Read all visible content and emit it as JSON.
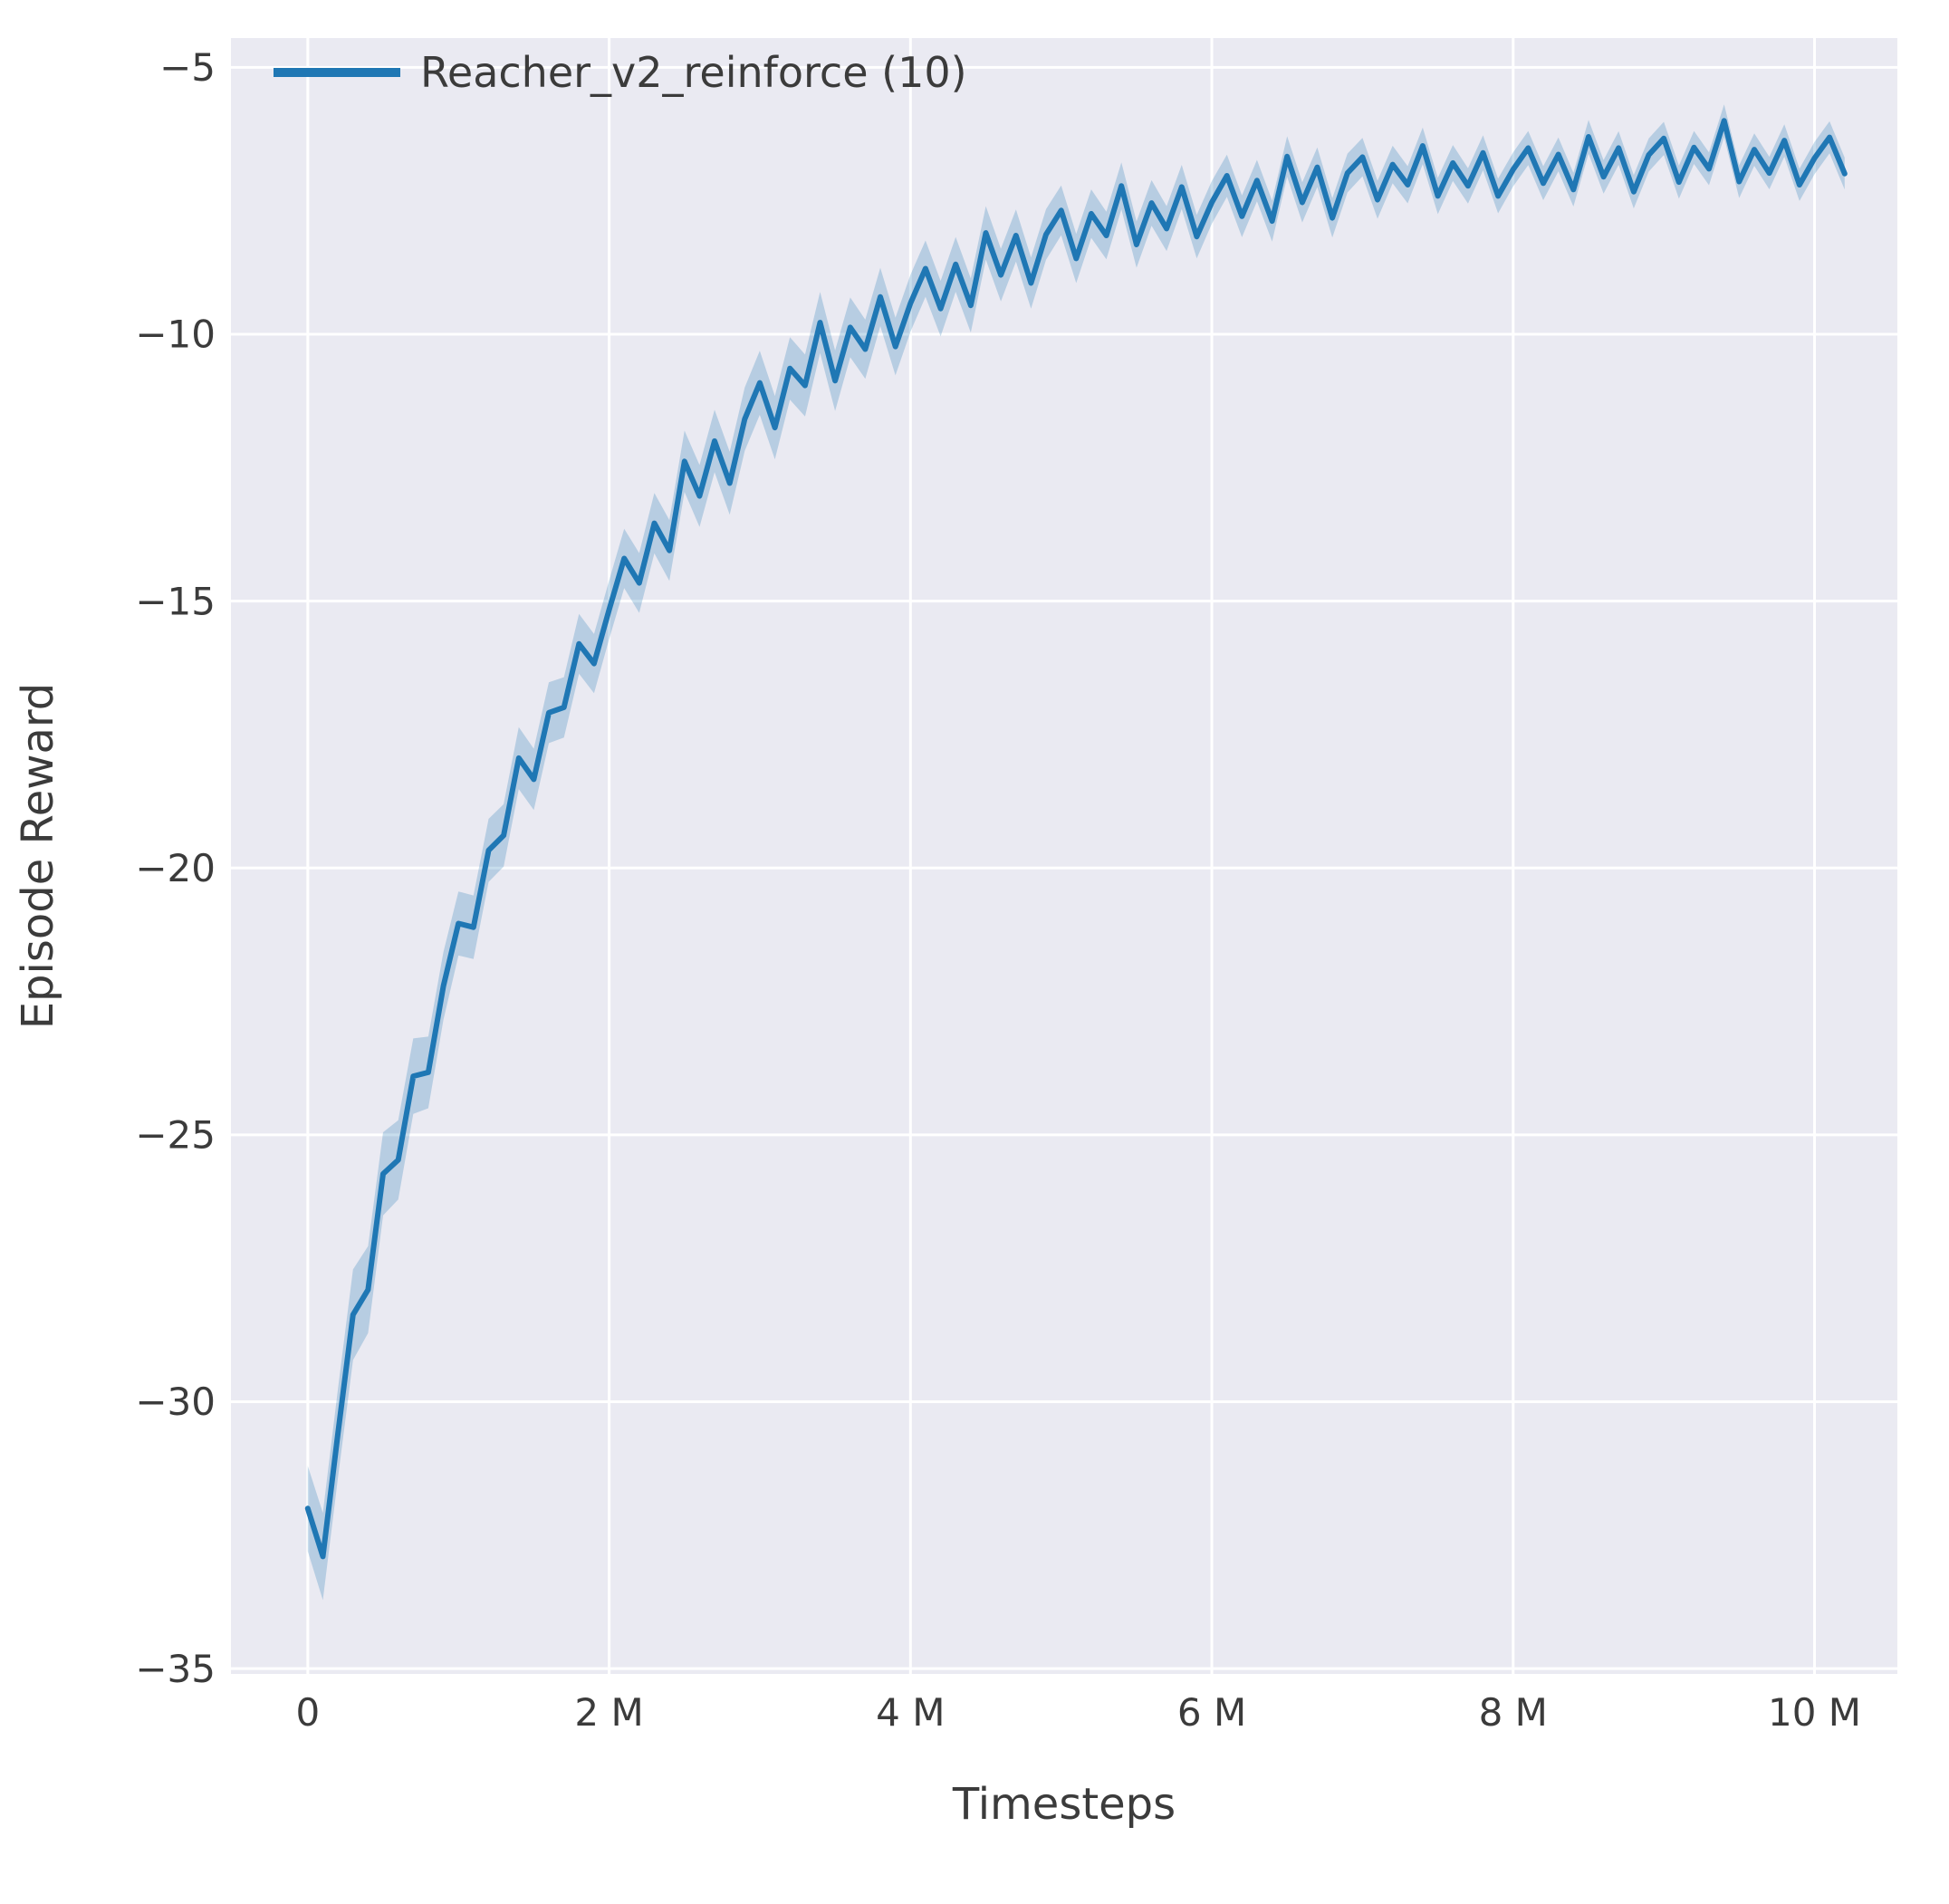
{
  "figure": {
    "background": "#ffffff",
    "axes_background": "#eaeaf2",
    "grid_color": "#ffffff",
    "text_color": "#3b3b3b"
  },
  "chart_data": {
    "type": "line",
    "title": "",
    "xlabel": "Timesteps",
    "ylabel": "Episode Reward",
    "grid": true,
    "legend_position": "upper left",
    "legend": [
      {
        "label": "Reacher_v2_reinforce (10)",
        "color": "#1f77b4"
      }
    ],
    "x_unit": "millions of timesteps",
    "xlim": [
      -0.51,
      10.55
    ],
    "ylim": [
      -35.1,
      -4.45
    ],
    "xticks": {
      "values": [
        0,
        2,
        4,
        6,
        8,
        10
      ],
      "labels": [
        "0",
        "2 M",
        "4 M",
        "6 M",
        "8 M",
        "10 M"
      ]
    },
    "yticks": {
      "values": [
        -5,
        -10,
        -15,
        -20,
        -25,
        -30,
        -35
      ],
      "labels": [
        "−5",
        "−10",
        "−15",
        "−20",
        "−25",
        "−30",
        "−35"
      ]
    },
    "series": [
      {
        "name": "Reacher_v2_reinforce (10)",
        "color": "#1f77b4",
        "line_width": 6,
        "x": [
          0.0,
          0.1,
          0.2,
          0.3,
          0.4,
          0.5,
          0.6,
          0.7,
          0.8,
          0.9,
          1.0,
          1.1,
          1.2,
          1.3,
          1.4,
          1.5,
          1.6,
          1.7,
          1.8,
          1.9,
          2.0,
          2.1,
          2.2,
          2.3,
          2.4,
          2.5,
          2.6,
          2.7,
          2.8,
          2.9,
          3.0,
          3.1,
          3.2,
          3.3,
          3.4,
          3.5,
          3.6,
          3.7,
          3.8,
          3.9,
          4.0,
          4.1,
          4.2,
          4.3,
          4.4,
          4.5,
          4.6,
          4.7,
          4.8,
          4.9,
          5.0,
          5.1,
          5.2,
          5.3,
          5.4,
          5.5,
          5.6,
          5.7,
          5.8,
          5.9,
          6.0,
          6.1,
          6.2,
          6.3,
          6.4,
          6.5,
          6.6,
          6.7,
          6.8,
          6.9,
          7.0,
          7.1,
          7.2,
          7.3,
          7.4,
          7.5,
          7.6,
          7.7,
          7.8,
          7.9,
          8.0,
          8.1,
          8.2,
          8.3,
          8.4,
          8.5,
          8.6,
          8.7,
          8.8,
          8.9,
          9.0,
          9.1,
          9.2,
          9.3,
          9.4,
          9.5,
          9.6,
          9.7,
          9.8,
          9.9,
          10.0,
          10.1,
          10.2
        ],
        "y": [
          -32.0,
          -32.9,
          -30.6,
          -28.37,
          -27.9,
          -25.73,
          -25.47,
          -23.9,
          -23.83,
          -22.21,
          -21.04,
          -21.11,
          -19.67,
          -19.39,
          -17.94,
          -18.34,
          -17.09,
          -16.99,
          -15.8,
          -16.17,
          -15.16,
          -14.2,
          -14.66,
          -13.54,
          -14.05,
          -12.38,
          -13.03,
          -12.0,
          -12.79,
          -11.59,
          -10.91,
          -11.75,
          -10.64,
          -10.96,
          -9.78,
          -10.87,
          -9.87,
          -10.28,
          -9.3,
          -10.23,
          -9.42,
          -8.77,
          -9.52,
          -8.69,
          -9.46,
          -8.1,
          -8.89,
          -8.15,
          -9.04,
          -8.13,
          -7.68,
          -8.58,
          -7.74,
          -8.15,
          -7.22,
          -8.32,
          -7.54,
          -8.02,
          -7.24,
          -8.17,
          -7.53,
          -7.03,
          -7.79,
          -7.12,
          -7.88,
          -6.67,
          -7.53,
          -6.87,
          -7.82,
          -6.98,
          -6.68,
          -7.48,
          -6.82,
          -7.2,
          -6.47,
          -7.41,
          -6.79,
          -7.22,
          -6.6,
          -7.41,
          -6.91,
          -6.51,
          -7.17,
          -6.63,
          -7.29,
          -6.3,
          -7.05,
          -6.51,
          -7.33,
          -6.64,
          -6.33,
          -7.15,
          -6.5,
          -6.9,
          -6.0,
          -7.14,
          -6.54,
          -6.98,
          -6.37,
          -7.2,
          -6.7,
          -6.31,
          -6.99
        ],
        "band": {
          "x": [
            0,
            0.3,
            1,
            2,
            3,
            4.5,
            6,
            8,
            10.2
          ],
          "halfwidth": [
            0.8,
            0.85,
            0.6,
            0.55,
            0.6,
            0.5,
            0.4,
            0.32,
            0.3
          ],
          "opacity": 0.25
        }
      }
    ]
  }
}
